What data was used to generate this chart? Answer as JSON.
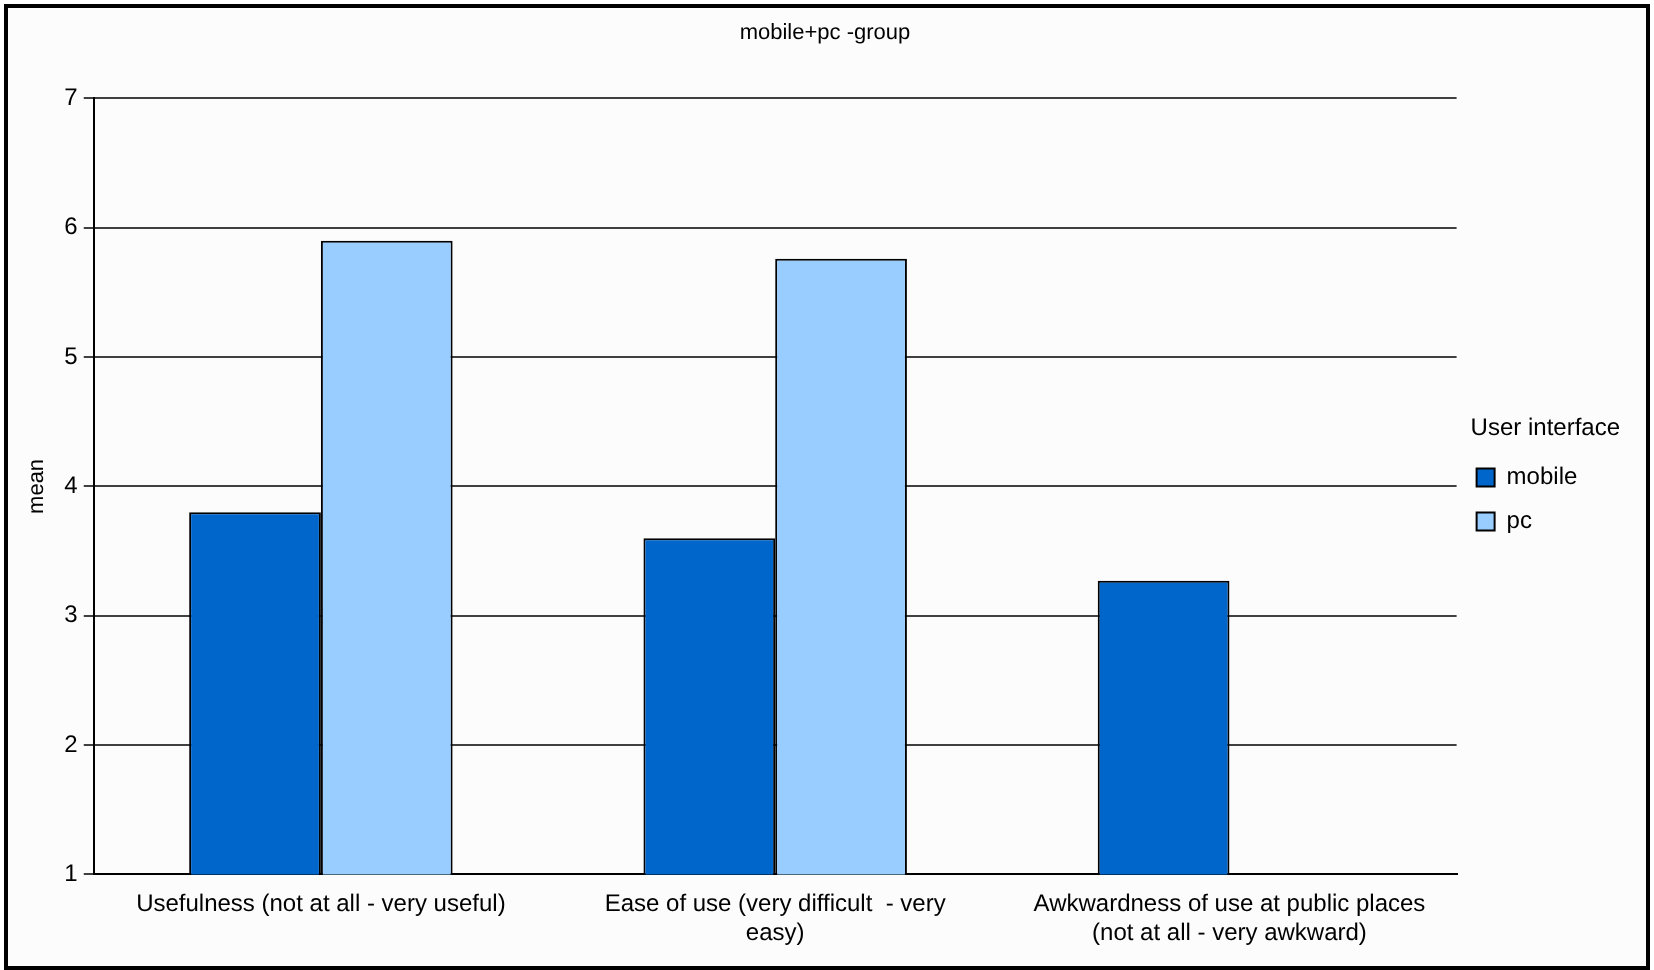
{
  "chart_data": {
    "type": "bar",
    "title": "mobile+pc -group",
    "ylabel": "mean",
    "legend_title": "User interface",
    "categories": [
      "Usefulness (not at all - very useful)",
      "Ease of use (very difficult  - very easy)",
      "Awkwardness of use at public places (not at all - very awkward)"
    ],
    "series": [
      {
        "name": "mobile",
        "color": "#0066cc",
        "values": [
          3.8,
          3.6,
          3.27
        ]
      },
      {
        "name": "pc",
        "color": "#99ccff",
        "values": [
          5.9,
          5.76,
          null
        ]
      }
    ],
    "ylim": [
      1,
      7
    ],
    "yticks": [
      1,
      2,
      3,
      4,
      5,
      6,
      7
    ],
    "grid": "y",
    "legend": "right"
  }
}
